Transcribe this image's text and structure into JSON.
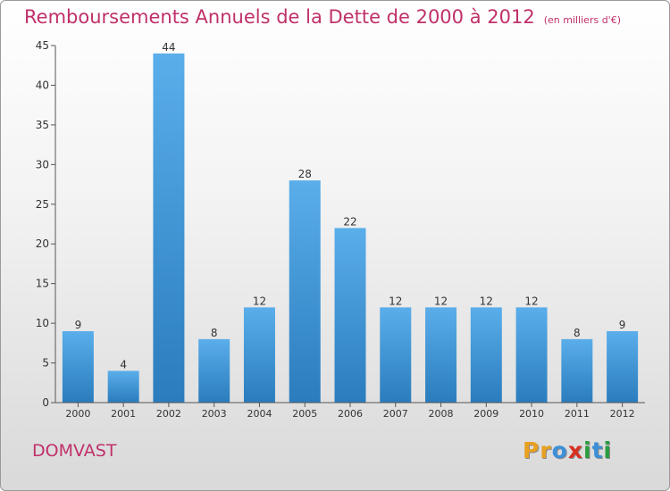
{
  "header": {
    "title": "Remboursements Annuels de la Dette de 2000 à 2012",
    "unit": "(en milliers d'€)"
  },
  "footer": {
    "commune": "DOMVAST",
    "logo_letters": [
      "P",
      "r",
      "o",
      "x",
      "i",
      "t",
      "i"
    ],
    "logo_colors": [
      "#e8a020",
      "#e8a020",
      "#3c90d8",
      "#d83020",
      "#2a9c40",
      "#3c90d8",
      "#2a9c40"
    ]
  },
  "colors": {
    "accent": "#c0306a",
    "bar_light": "#5aaeea",
    "bar_dark": "#2a7cbd"
  },
  "chart_data": {
    "type": "bar",
    "categories": [
      "2000",
      "2001",
      "2002",
      "2003",
      "2004",
      "2005",
      "2006",
      "2007",
      "2008",
      "2009",
      "2010",
      "2011",
      "2012"
    ],
    "values": [
      9,
      4,
      44,
      8,
      12,
      28,
      22,
      12,
      12,
      12,
      12,
      8,
      9
    ],
    "ylim": [
      0,
      45
    ],
    "yticks": [
      0,
      5,
      10,
      15,
      20,
      25,
      30,
      35,
      40,
      45
    ],
    "grid": false
  }
}
